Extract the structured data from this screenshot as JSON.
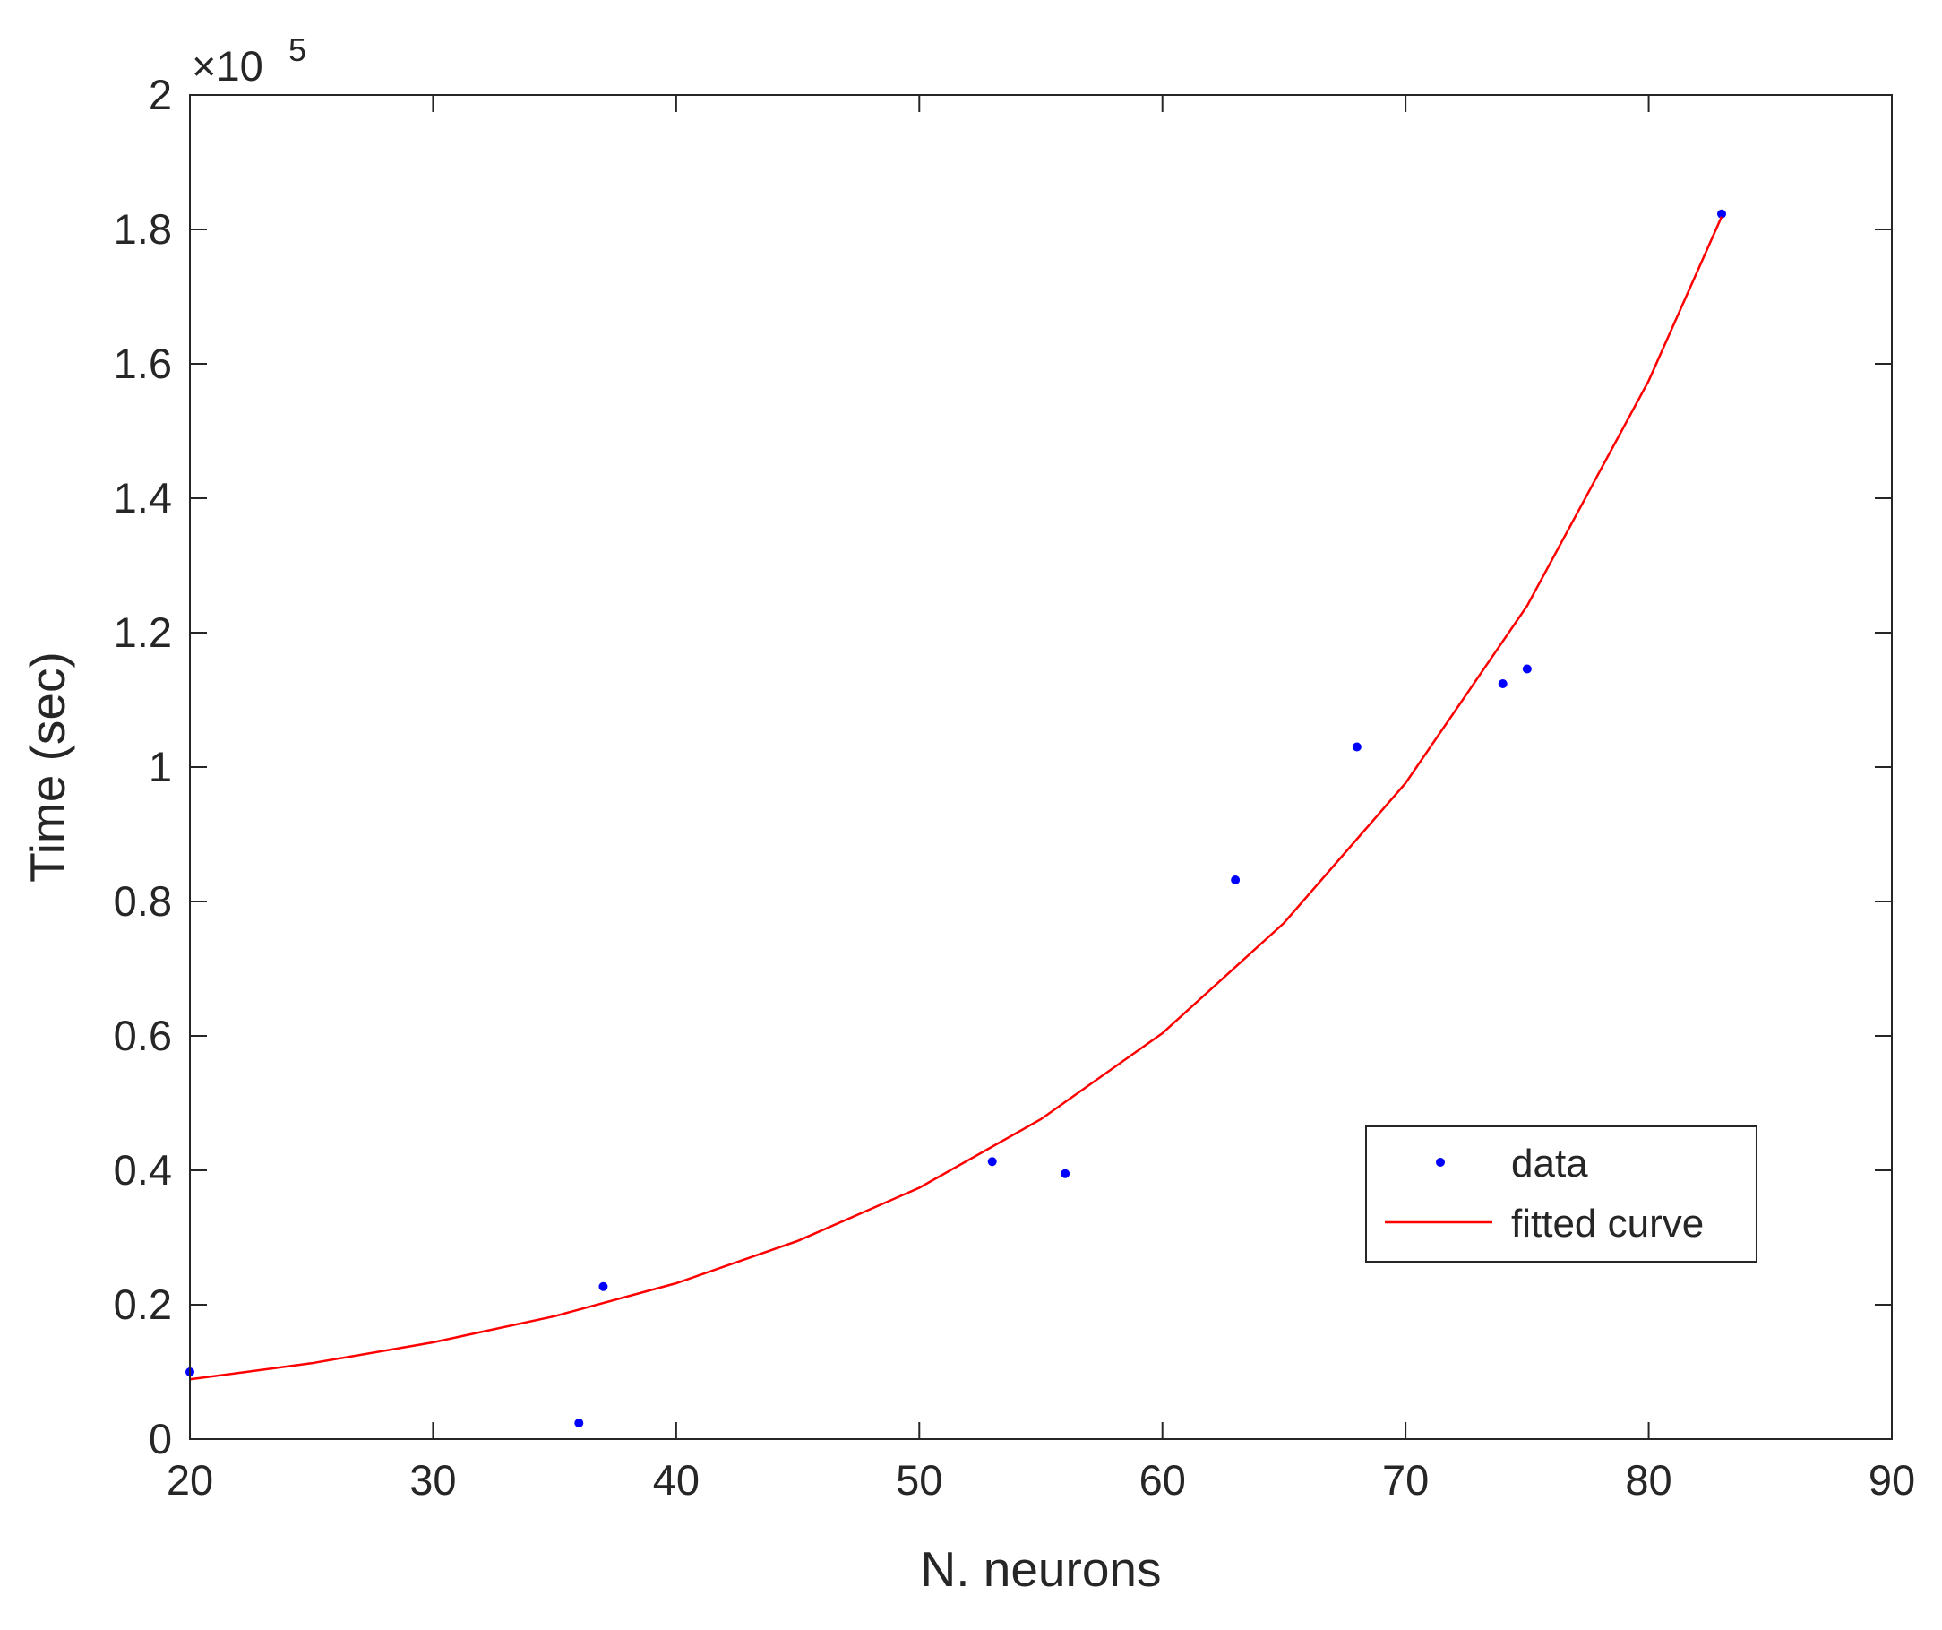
{
  "chart_data": {
    "type": "scatter",
    "x_label": "N. neurons",
    "y_label": "Time (sec)",
    "y_exponent_base": "×10",
    "y_exponent": "5",
    "xlim": [
      20,
      90
    ],
    "xticks": [
      20,
      30,
      40,
      50,
      60,
      70,
      80,
      90
    ],
    "ylim": [
      0,
      2
    ],
    "yticks": [
      0,
      0.2,
      0.4,
      0.6,
      0.8,
      1,
      1.2,
      1.4,
      1.6,
      1.8,
      2
    ],
    "grid": false,
    "legend": "lower right",
    "series": [
      {
        "name": "data",
        "color": "#0000ff",
        "mode": "markers",
        "x": [
          20,
          36,
          37,
          53,
          56,
          63,
          68,
          74,
          75,
          83
        ],
        "values": [
          0.1,
          0.024,
          0.227,
          0.413,
          0.395,
          0.832,
          1.03,
          1.124,
          1.146,
          1.823
        ]
      },
      {
        "name": "fitted curve",
        "color": "#ff0000",
        "mode": "line",
        "x": [
          20,
          25,
          30,
          35,
          40,
          45,
          50,
          55,
          60,
          65,
          70,
          75,
          80,
          83
        ],
        "values": [
          0.089,
          0.113,
          0.144,
          0.183,
          0.232,
          0.295,
          0.374,
          0.476,
          0.604,
          0.768,
          0.976,
          1.24,
          1.575,
          1.819
        ]
      }
    ]
  }
}
